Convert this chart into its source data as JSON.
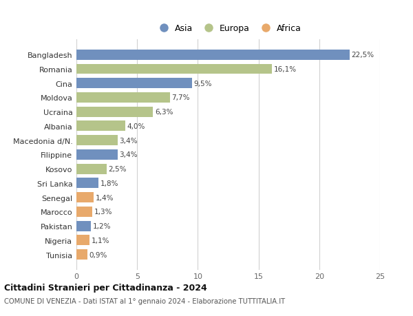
{
  "countries": [
    "Tunisia",
    "Nigeria",
    "Pakistan",
    "Marocco",
    "Senegal",
    "Sri Lanka",
    "Kosovo",
    "Filippine",
    "Macedonia d/N.",
    "Albania",
    "Ucraina",
    "Moldova",
    "Cina",
    "Romania",
    "Bangladesh"
  ],
  "values": [
    0.9,
    1.1,
    1.2,
    1.3,
    1.4,
    1.8,
    2.5,
    3.4,
    3.4,
    4.0,
    6.3,
    7.7,
    9.5,
    16.1,
    22.5
  ],
  "labels": [
    "0,9%",
    "1,1%",
    "1,2%",
    "1,3%",
    "1,4%",
    "1,8%",
    "2,5%",
    "3,4%",
    "3,4%",
    "4,0%",
    "6,3%",
    "7,7%",
    "9,5%",
    "16,1%",
    "22,5%"
  ],
  "continents": [
    "Africa",
    "Africa",
    "Asia",
    "Africa",
    "Africa",
    "Asia",
    "Europa",
    "Asia",
    "Europa",
    "Europa",
    "Europa",
    "Europa",
    "Asia",
    "Europa",
    "Asia"
  ],
  "colors": {
    "Asia": "#7090be",
    "Europa": "#b5c48a",
    "Africa": "#e8a96b"
  },
  "legend_labels": [
    "Asia",
    "Europa",
    "Africa"
  ],
  "title": "Cittadini Stranieri per Cittadinanza - 2024",
  "subtitle": "COMUNE DI VENEZIA - Dati ISTAT al 1° gennaio 2024 - Elaborazione TUTTITALIA.IT",
  "xlim": [
    0,
    25
  ],
  "xticks": [
    0,
    5,
    10,
    15,
    20,
    25
  ],
  "background_color": "#ffffff",
  "grid_color": "#d0d0d0",
  "bar_height": 0.72
}
